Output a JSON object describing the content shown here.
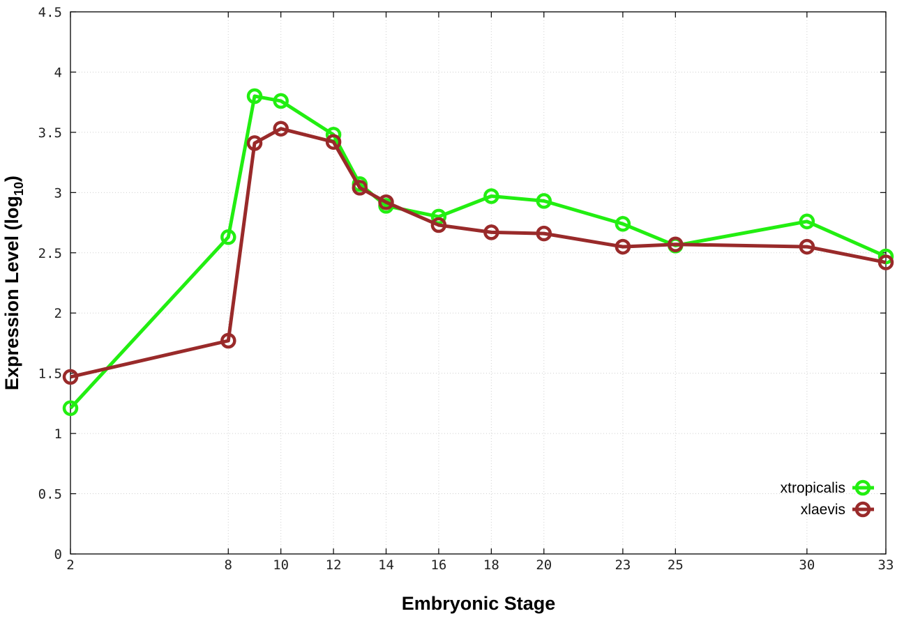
{
  "chart_data": {
    "type": "line",
    "title": "",
    "xlabel": "Embryonic Stage",
    "ylabel_main": "Expression Level (log",
    "ylabel_sub": "10",
    "ylabel_close": ")",
    "xlim": [
      2,
      33
    ],
    "ylim": [
      0,
      4.5
    ],
    "x": [
      2,
      8,
      9,
      10,
      12,
      13,
      14,
      16,
      18,
      20,
      23,
      25,
      30,
      33
    ],
    "xticks": [
      2,
      8,
      10,
      12,
      14,
      16,
      18,
      20,
      23,
      25,
      30,
      33
    ],
    "xtick_labels": [
      "2",
      "8",
      "10",
      "12",
      "14",
      "16",
      "18",
      "20",
      "23",
      "25",
      "30",
      "33"
    ],
    "yticks": [
      0,
      0.5,
      1,
      1.5,
      2,
      2.5,
      3,
      3.5,
      4,
      4.5
    ],
    "ytick_labels": [
      "0",
      "0.5",
      "1",
      "1.5",
      "2",
      "2.5",
      "3",
      "3.5",
      "4",
      "4.5"
    ],
    "grid": true,
    "legend_position": "bottom-right",
    "series": [
      {
        "name": "xtropicalis",
        "color": "#22ee11",
        "values": [
          1.21,
          2.63,
          3.8,
          3.76,
          3.48,
          3.07,
          2.89,
          2.8,
          2.97,
          2.93,
          2.74,
          2.56,
          2.76,
          2.47
        ]
      },
      {
        "name": "xlaevis",
        "color": "#992a2a",
        "values": [
          1.47,
          1.77,
          3.41,
          3.53,
          3.42,
          3.04,
          2.92,
          2.73,
          2.67,
          2.66,
          2.55,
          2.57,
          2.55,
          2.42
        ]
      }
    ]
  }
}
